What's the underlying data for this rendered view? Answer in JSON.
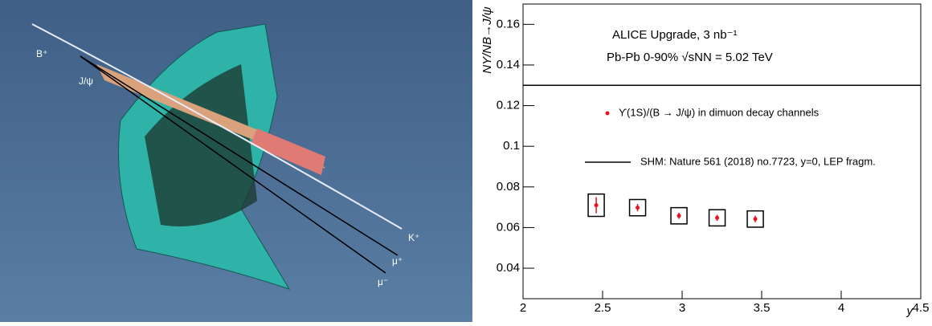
{
  "illustration": {
    "labels": [
      "B⁺",
      "J/ψ",
      "K⁺",
      "μ⁺",
      "μ⁻"
    ]
  },
  "chart_data": {
    "type": "scatter",
    "annotations": [
      "ALICE Upgrade, 3 nb⁻¹",
      "Pb-Pb 0-90% √sNN = 5.02 TeV"
    ],
    "x_label": "y",
    "y_label": "NΥ/NB→J/ψ",
    "x": [
      2.46,
      2.72,
      2.98,
      3.22,
      3.46
    ],
    "series": [
      {
        "name": "ϒ(1S)/(B → J/ψ) in dimuon decay channels",
        "color": "#e8141c",
        "values": [
          0.071,
          0.0698,
          0.0658,
          0.0648,
          0.0642
        ],
        "errors": [
          0.004,
          0.0018,
          0.0015,
          0.0015,
          0.0016
        ],
        "sys_errors": [
          0.0055,
          0.004,
          0.004,
          0.004,
          0.004
        ]
      }
    ],
    "reference_lines": [
      {
        "name": "SHM: Nature 561 (2018) no.7723, y=0, LEP fragm.",
        "value": 0.13,
        "color": "#000000"
      }
    ],
    "xlim": [
      2,
      4.5
    ],
    "ylim": [
      0.025,
      0.17
    ],
    "xticks": [
      2,
      2.5,
      3,
      3.5,
      4,
      4.5
    ],
    "yticks": [
      0.04,
      0.06,
      0.08,
      0.1,
      0.12,
      0.14,
      0.16
    ]
  }
}
